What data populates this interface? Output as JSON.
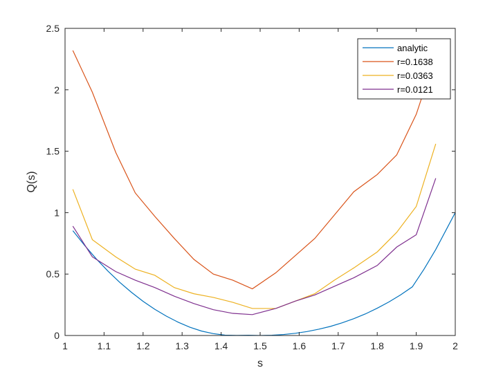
{
  "chart_data": {
    "type": "line",
    "title": "",
    "xlabel": "s",
    "ylabel": "Q(s)",
    "xlim": [
      1,
      2
    ],
    "ylim": [
      0,
      2.5
    ],
    "xticks": [
      1,
      1.1,
      1.2,
      1.3,
      1.4,
      1.5,
      1.6,
      1.7,
      1.8,
      1.9,
      2
    ],
    "xtick_labels": [
      "1",
      "1.1",
      "1.2",
      "1.3",
      "1.4",
      "1.5",
      "1.6",
      "1.7",
      "1.8",
      "1.9",
      "2"
    ],
    "yticks": [
      0,
      0.5,
      1,
      1.5,
      2,
      2.5
    ],
    "ytick_labels": [
      "0",
      "0.5",
      "1",
      "1.5",
      "2",
      "2.5"
    ],
    "grid": false,
    "box": true,
    "legend_position": "top-right",
    "series": [
      {
        "name": "analytic",
        "color": "#0072BD",
        "x": [
          1.02,
          1.05,
          1.08,
          1.11,
          1.14,
          1.17,
          1.2,
          1.23,
          1.26,
          1.29,
          1.32,
          1.35,
          1.38,
          1.41,
          1.44,
          1.47,
          1.5,
          1.53,
          1.56,
          1.59,
          1.62,
          1.65,
          1.68,
          1.71,
          1.74,
          1.77,
          1.8,
          1.83,
          1.86,
          1.89,
          1.92,
          1.95,
          1.98,
          2.0
        ],
        "y": [
          0.853,
          0.734,
          0.624,
          0.524,
          0.433,
          0.352,
          0.278,
          0.213,
          0.157,
          0.108,
          0.067,
          0.036,
          0.015,
          0.003,
          0.001,
          0.002,
          0.0,
          0.002,
          0.008,
          0.018,
          0.032,
          0.051,
          0.074,
          0.103,
          0.137,
          0.176,
          0.222,
          0.273,
          0.331,
          0.396,
          0.54,
          0.7,
          0.88,
          1.0
        ]
      },
      {
        "name": "r=0.1638",
        "color": "#D95319",
        "x": [
          1.02,
          1.07,
          1.13,
          1.18,
          1.23,
          1.28,
          1.33,
          1.38,
          1.43,
          1.48,
          1.54,
          1.59,
          1.64,
          1.69,
          1.74,
          1.8,
          1.85,
          1.9,
          1.95
        ],
        "y": [
          2.32,
          1.98,
          1.49,
          1.16,
          0.97,
          0.79,
          0.62,
          0.5,
          0.45,
          0.38,
          0.51,
          0.65,
          0.79,
          0.98,
          1.17,
          1.31,
          1.47,
          1.8,
          2.28
        ]
      },
      {
        "name": "r=0.0363",
        "color": "#EDB120",
        "x": [
          1.02,
          1.07,
          1.13,
          1.18,
          1.23,
          1.28,
          1.33,
          1.38,
          1.43,
          1.48,
          1.54,
          1.59,
          1.64,
          1.69,
          1.74,
          1.8,
          1.85,
          1.9,
          1.95
        ],
        "y": [
          1.19,
          0.78,
          0.64,
          0.54,
          0.49,
          0.39,
          0.34,
          0.31,
          0.27,
          0.22,
          0.22,
          0.28,
          0.34,
          0.45,
          0.55,
          0.68,
          0.84,
          1.05,
          1.56
        ]
      },
      {
        "name": "r=0.0121",
        "color": "#7E2F8E",
        "x": [
          1.02,
          1.07,
          1.13,
          1.18,
          1.23,
          1.28,
          1.33,
          1.38,
          1.43,
          1.48,
          1.54,
          1.59,
          1.64,
          1.69,
          1.74,
          1.8,
          1.85,
          1.9,
          1.95
        ],
        "y": [
          0.89,
          0.64,
          0.52,
          0.45,
          0.39,
          0.32,
          0.26,
          0.21,
          0.18,
          0.17,
          0.22,
          0.28,
          0.33,
          0.4,
          0.47,
          0.57,
          0.72,
          0.82,
          1.28
        ]
      }
    ]
  }
}
